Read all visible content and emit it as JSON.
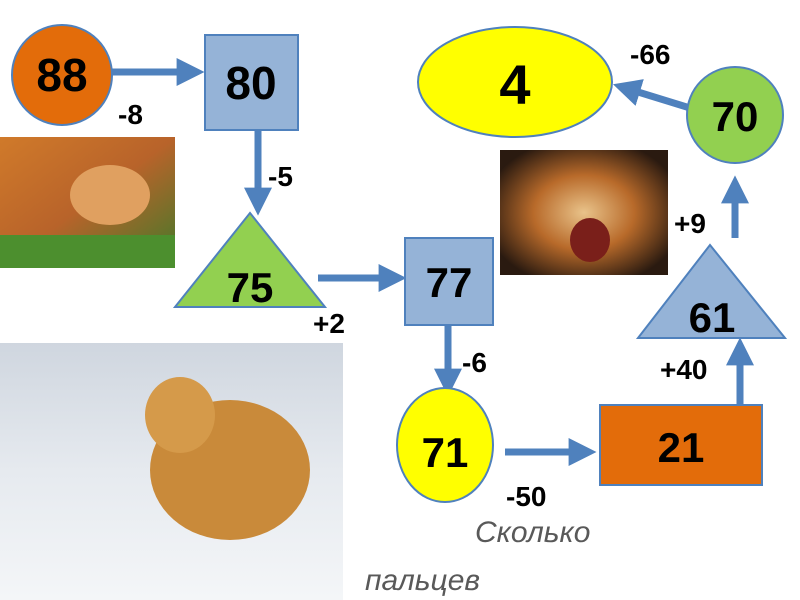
{
  "colors": {
    "orange": "#E36C0A",
    "blue": "#95B3D7",
    "green": "#92D050",
    "yellow": "#FFFF00",
    "arrow": "#4F81BD"
  },
  "nodes": {
    "n88": "88",
    "n80": "80",
    "n75": "75",
    "n77": "77",
    "n71": "71",
    "n21": "21",
    "n61": "61",
    "n70": "70",
    "n4": "4"
  },
  "operations": {
    "o1": "-8",
    "o2": "-5",
    "o3": "+2",
    "o4": "-6",
    "o5": "-50",
    "o6": "+40",
    "o7": "+9",
    "o8": "-66"
  },
  "caption": {
    "line1": "Сколько",
    "line2": "пальцев"
  },
  "images": [
    "tiger-lying-photo",
    "tiger-roaring-photo",
    "tiger-in-snow-photo"
  ]
}
